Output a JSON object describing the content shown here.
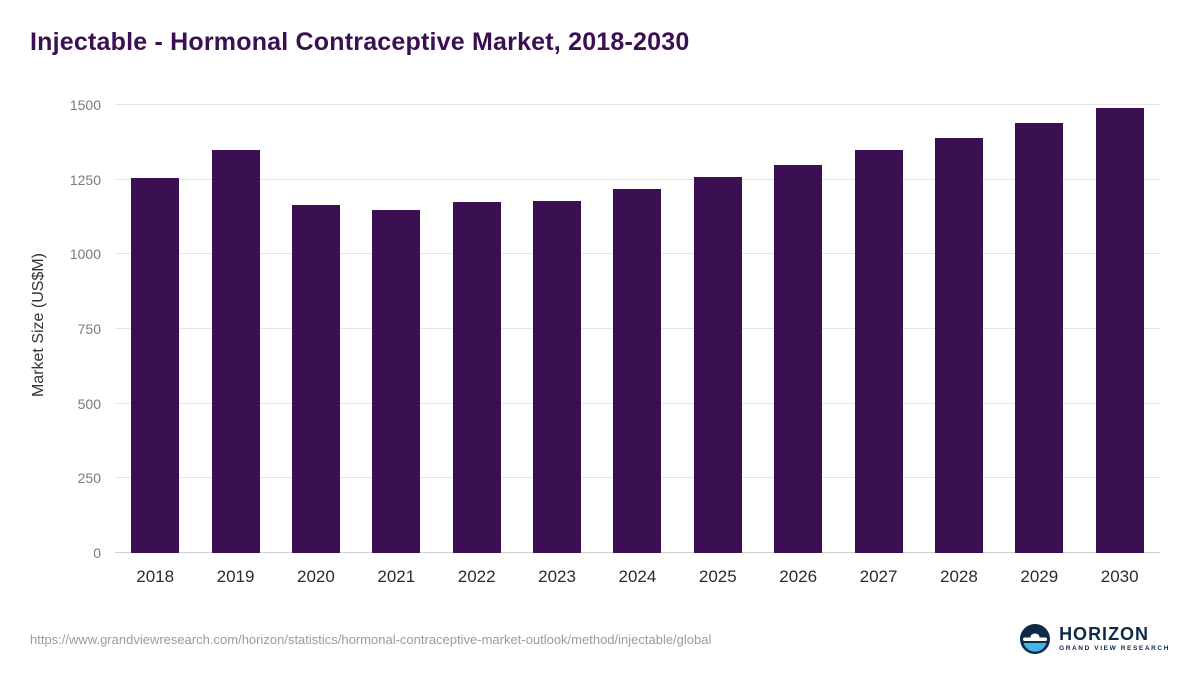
{
  "title": "Injectable - Hormonal Contraceptive Market, 2018-2030",
  "chart_data": {
    "type": "bar",
    "categories": [
      "2018",
      "2019",
      "2020",
      "2021",
      "2022",
      "2023",
      "2024",
      "2025",
      "2026",
      "2027",
      "2028",
      "2029",
      "2030"
    ],
    "values": [
      1255,
      1350,
      1165,
      1150,
      1175,
      1180,
      1220,
      1260,
      1300,
      1350,
      1390,
      1440,
      1490
    ],
    "title": "Injectable - Hormonal Contraceptive Market, 2018-2030",
    "xlabel": "",
    "ylabel": "Market Size (US$M)",
    "ylim": [
      0,
      1500
    ],
    "ytick_step": 250,
    "grid": true,
    "legend_position": "none",
    "bar_color": "#3b1053"
  },
  "footer": {
    "source_url": "https://www.grandviewresearch.com/horizon/statistics/hormonal-contraceptive-market-outlook/method/injectable/global",
    "logo_name": "HORIZON",
    "logo_sub": "GRAND VIEW RESEARCH"
  },
  "colors": {
    "bar": "#3b1053",
    "title": "#3b1053",
    "grid": "#e4e4e4",
    "tick_label": "#7a7a7a",
    "x_label": "#2b2b2b",
    "url": "#9b9b9b",
    "logo_navy": "#0e2a47",
    "logo_blue": "#45b5e8"
  }
}
